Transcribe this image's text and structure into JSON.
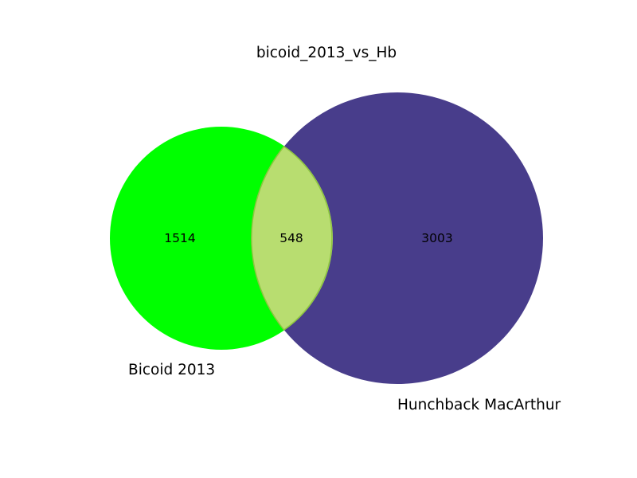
{
  "figure": {
    "title": "bicoid_2013_vs_Hb"
  },
  "sets": {
    "a": {
      "label": "Bicoid 2013",
      "color": "#00ff00"
    },
    "b": {
      "label": "Hunchback MacArthur",
      "color": "#483d8b"
    },
    "overlap_color": "#b8dd70",
    "overlap_edge_color": "#8ec63f"
  },
  "regions": {
    "a_only": "1514",
    "intersection": "548",
    "b_only": "3003"
  }
}
